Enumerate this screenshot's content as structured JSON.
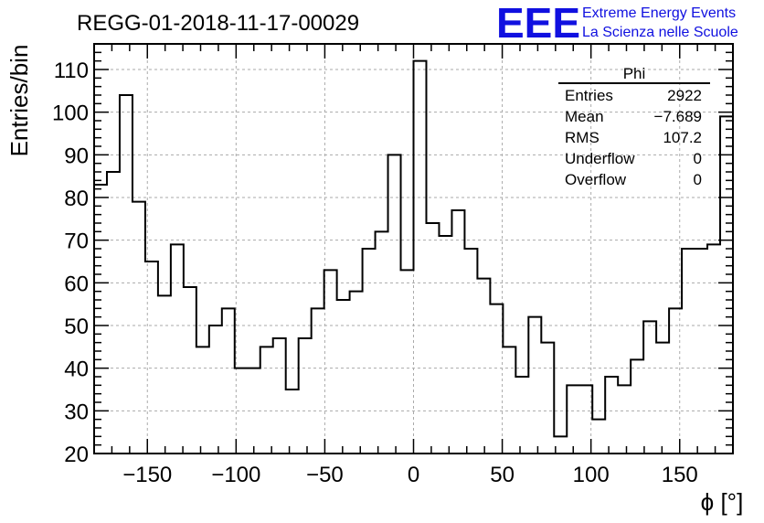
{
  "chart_data": {
    "type": "bar",
    "title": "REGG-01-2018-11-17-00029",
    "xlabel": "ϕ [°]",
    "ylabel": "Entries/bin",
    "xlim": [
      -180,
      180
    ],
    "ylim": [
      20,
      116
    ],
    "xticks": [
      -150,
      -100,
      -50,
      0,
      50,
      100,
      150
    ],
    "xtick_labels": [
      "−150",
      "−100",
      "−50",
      "0",
      "50",
      "100",
      "150"
    ],
    "yticks": [
      20,
      30,
      40,
      50,
      60,
      70,
      80,
      90,
      100,
      110
    ],
    "grid": true,
    "bin_width": 7.2,
    "bin_edges_start": -180,
    "values": [
      83,
      86,
      104,
      79,
      65,
      57,
      69,
      59,
      45,
      50,
      54,
      40,
      40,
      45,
      47,
      35,
      47,
      54,
      63,
      56,
      58,
      68,
      72,
      90,
      63,
      112,
      74,
      71,
      77,
      68,
      61,
      55,
      45,
      38,
      52,
      46,
      24,
      36,
      36,
      28,
      38,
      36,
      42,
      51,
      46,
      54,
      68,
      68,
      69,
      99
    ]
  },
  "stats_box": {
    "title": "Phi",
    "rows": [
      {
        "label": "Entries",
        "value": "2922"
      },
      {
        "label": "Mean",
        "value": "−7.689"
      },
      {
        "label": "RMS",
        "value": "107.2"
      },
      {
        "label": "Underflow",
        "value": "0"
      },
      {
        "label": "Overflow",
        "value": "0"
      }
    ]
  },
  "logo": {
    "mark": "EEE",
    "line1": "Extreme Energy Events",
    "line2": "La Scienza nelle Scuole",
    "color": "#1010e0"
  }
}
